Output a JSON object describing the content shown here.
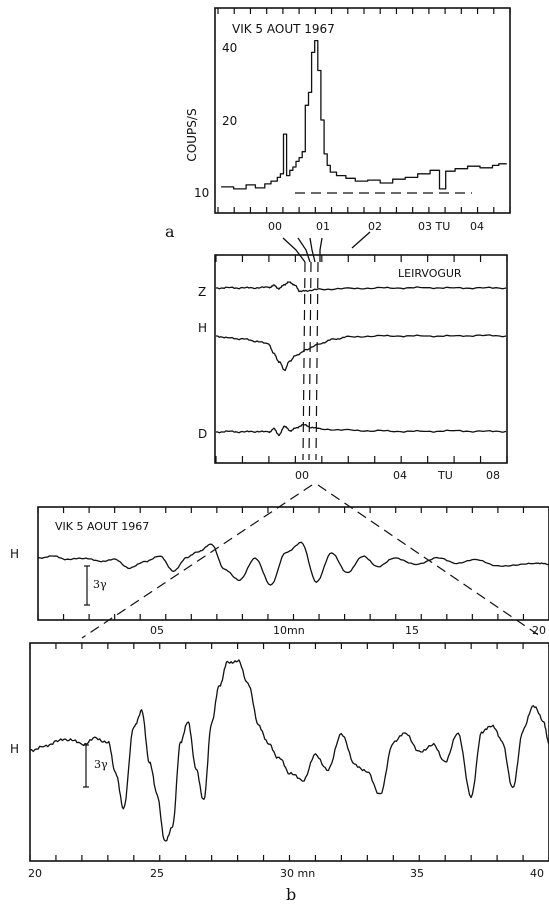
{
  "chart_data": [
    {
      "type": "line",
      "panel": "a",
      "annotation": "VIK 5 AOUT 1967",
      "ylabel": "COUPS/S",
      "x_ticks": [
        "00",
        "01",
        "02",
        "03 TU",
        "04"
      ],
      "y_ticks": [
        "10",
        "20",
        "40"
      ],
      "xlim": [
        -0.6,
        4.0
      ],
      "ylim": [
        8,
        47
      ],
      "y_scale": "log",
      "baseline_dashed": 10,
      "series": [
        {
          "x": [
            -0.55,
            -0.35,
            -0.15,
            0.0,
            0.15,
            0.25,
            0.35,
            0.4,
            0.45,
            0.5,
            0.55,
            0.6,
            0.65,
            0.7,
            0.75,
            0.8,
            0.85,
            0.9,
            0.95,
            1.0,
            1.05,
            1.1,
            1.15,
            1.2,
            1.3,
            1.45,
            1.6,
            1.8,
            2.0,
            2.2,
            2.4,
            2.6,
            2.8,
            2.95,
            3.05,
            3.2,
            3.4,
            3.6,
            3.8,
            3.9
          ],
          "y": [
            10.6,
            10.4,
            10.8,
            10.5,
            10.9,
            11.2,
            11.6,
            12.0,
            17.5,
            11.8,
            12.4,
            12.8,
            13.5,
            14.0,
            14.8,
            23.0,
            26.0,
            38.0,
            42.5,
            32.0,
            20.0,
            14.5,
            13.0,
            12.2,
            11.8,
            11.5,
            11.2,
            11.3,
            11.0,
            11.4,
            11.6,
            12.0,
            12.4,
            10.4,
            12.3,
            12.6,
            12.9,
            12.7,
            13.0,
            13.2
          ]
        }
      ]
    },
    {
      "type": "line",
      "panel": "LEIRVOGUR",
      "annotation": "LEIRVOGUR",
      "x_ticks": [
        "00",
        "04",
        "TU",
        "08"
      ],
      "xlim": [
        -2.0,
        9.0
      ],
      "series": [
        {
          "name": "Z",
          "x": [
            -2,
            -1.5,
            -1,
            -0.5,
            0,
            0.2,
            0.4,
            0.6,
            0.8,
            1.0,
            1.2,
            1.5,
            2,
            3,
            4,
            5,
            6,
            7,
            8,
            9
          ],
          "y": [
            0.0,
            0.05,
            0.0,
            0.05,
            0.1,
            0.4,
            -0.1,
            0.6,
            1.0,
            0.4,
            -0.6,
            -0.4,
            -0.2,
            -0.1,
            0.0,
            0.0,
            0.05,
            0.0,
            0.0,
            0.0
          ]
        },
        {
          "name": "H",
          "x": [
            -2,
            -1.5,
            -1,
            -0.5,
            0,
            0.2,
            0.4,
            0.6,
            0.8,
            1.0,
            1.4,
            2,
            2.5,
            3,
            4,
            5,
            6,
            7,
            8,
            9
          ],
          "y": [
            0.0,
            -0.2,
            -0.3,
            -0.5,
            -0.8,
            -1.8,
            -2.6,
            -3.4,
            -2.5,
            -2.0,
            -1.4,
            -0.7,
            -0.3,
            -0.1,
            0.0,
            0.0,
            0.0,
            0.0,
            0.05,
            0.0
          ]
        },
        {
          "name": "D",
          "x": [
            -2,
            -1.5,
            -1,
            -0.5,
            0,
            0.2,
            0.4,
            0.6,
            0.8,
            1.0,
            1.3,
            1.6,
            2,
            3,
            4,
            5,
            6,
            7,
            8,
            9
          ],
          "y": [
            0.0,
            0.1,
            0.0,
            0.1,
            0.0,
            0.5,
            -0.5,
            1.0,
            0.2,
            0.6,
            1.2,
            0.8,
            0.5,
            0.3,
            0.2,
            0.1,
            0.1,
            0.2,
            0.1,
            0.1
          ]
        }
      ]
    },
    {
      "type": "line",
      "panel": "b-upper",
      "annotation": "VIK  5 AOUT 1967",
      "ylabel": "H",
      "scale_label": "3γ",
      "x_ticks": [
        "05",
        "10mn",
        "15",
        "20"
      ],
      "xlim": [
        0,
        20
      ],
      "series": [
        {
          "name": "H",
          "x": [
            0,
            0.6,
            1.2,
            1.8,
            2.4,
            3.0,
            3.6,
            4.2,
            4.8,
            5.3,
            5.8,
            6.3,
            6.8,
            7.3,
            7.9,
            8.5,
            9.1,
            9.7,
            10.3,
            10.9,
            11.5,
            12.1,
            12.7,
            13.3,
            14.0,
            14.8,
            15.6,
            16.4,
            17.2,
            18.0,
            18.8,
            19.6,
            20.0
          ],
          "y": [
            0.3,
            0.4,
            0.2,
            0.3,
            0.1,
            0.2,
            -0.3,
            0.1,
            0.4,
            -0.5,
            0.3,
            0.7,
            1.1,
            -0.4,
            -1.0,
            0.3,
            -1.3,
            0.6,
            1.2,
            -1.1,
            0.6,
            -0.6,
            0.4,
            -0.2,
            0.3,
            -0.1,
            0.3,
            0.0,
            0.2,
            -0.2,
            -0.1,
            0.0,
            -0.1
          ]
        }
      ]
    },
    {
      "type": "line",
      "panel": "b-lower",
      "ylabel": "H",
      "scale_label": "3γ",
      "x_ticks": [
        "20",
        "25",
        "30 mn",
        "35",
        "40"
      ],
      "xlim": [
        20,
        40
      ],
      "series": [
        {
          "name": "H",
          "x": [
            20,
            20.5,
            21,
            21.5,
            22,
            22.5,
            23,
            23.3,
            23.6,
            24.0,
            24.3,
            24.6,
            24.9,
            25.2,
            25.5,
            25.8,
            26.1,
            26.4,
            26.7,
            27.0,
            27.3,
            27.6,
            28.0,
            28.4,
            28.8,
            29.2,
            29.6,
            30.0,
            30.5,
            31.0,
            31.5,
            32.0,
            32.5,
            33.0,
            33.5,
            34.0,
            34.5,
            35.0,
            35.5,
            36.0,
            36.5,
            37.0,
            37.4,
            37.8,
            38.2,
            38.6,
            39.0,
            39.4,
            39.8,
            40.0
          ],
          "y": [
            0.0,
            0.1,
            0.3,
            0.4,
            0.2,
            0.4,
            0.3,
            -0.8,
            -2.1,
            0.8,
            1.4,
            -0.4,
            -1.6,
            -3.3,
            -2.7,
            0.3,
            1.0,
            -0.7,
            -1.8,
            1.0,
            2.3,
            3.1,
            3.2,
            2.4,
            0.9,
            0.2,
            -0.3,
            -0.8,
            -1.1,
            -0.2,
            -0.7,
            0.6,
            -0.5,
            -0.8,
            -1.6,
            0.3,
            0.6,
            -0.1,
            0.2,
            -0.4,
            0.6,
            -1.7,
            0.6,
            0.9,
            0.3,
            -1.4,
            0.7,
            1.6,
            1.0,
            0.2
          ]
        }
      ]
    }
  ],
  "labels": {
    "panel_a": "a",
    "panel_b": "b",
    "z_label": "Z",
    "h_label": "H",
    "d_label": "D"
  }
}
